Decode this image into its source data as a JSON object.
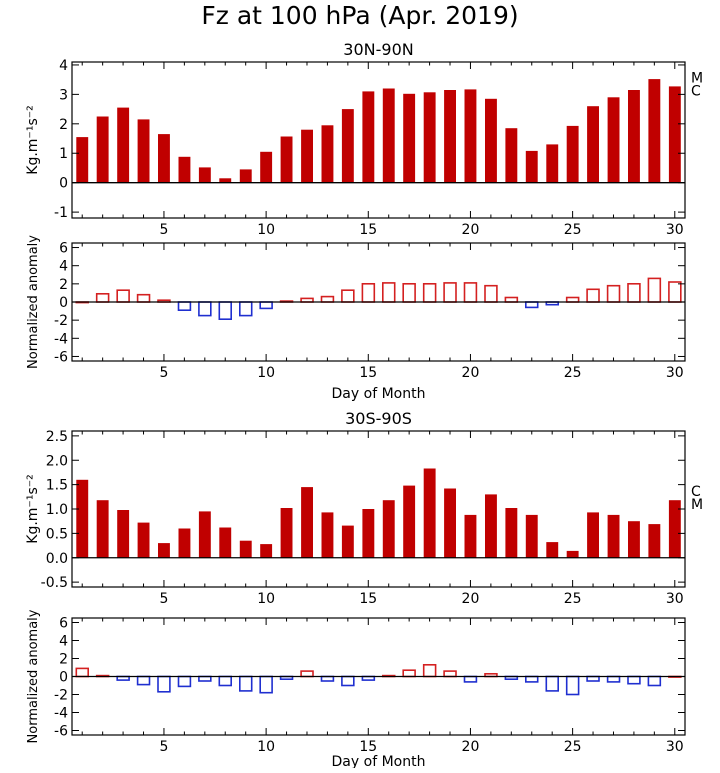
{
  "figure": {
    "title": "Fz at 100 hPa (Apr. 2019)",
    "bar_color": "#c00000",
    "positive_anomaly_color": "#d42020",
    "negative_anomaly_color": "#1f2fd0"
  },
  "chart_data": [
    {
      "type": "bar",
      "title": "30N-90N",
      "ylabel": "Kg.m⁻¹s⁻²",
      "xlabel": "",
      "x": [
        1,
        2,
        3,
        4,
        5,
        6,
        7,
        8,
        9,
        10,
        11,
        12,
        13,
        14,
        15,
        16,
        17,
        18,
        19,
        20,
        21,
        22,
        23,
        24,
        25,
        26,
        27,
        28,
        29,
        30
      ],
      "values": [
        1.55,
        2.25,
        2.55,
        2.15,
        1.65,
        0.88,
        0.52,
        0.15,
        0.45,
        1.05,
        1.57,
        1.8,
        1.95,
        2.5,
        3.1,
        3.2,
        3.02,
        3.07,
        3.15,
        3.17,
        2.85,
        1.85,
        1.08,
        1.3,
        1.93,
        2.6,
        2.9,
        3.15,
        3.52,
        3.27
      ],
      "ylim": [
        -1.2,
        4.1
      ],
      "yticks": [
        "-1",
        "0",
        "1",
        "2",
        "3",
        "4"
      ],
      "xticks": [
        "5",
        "10",
        "15",
        "20",
        "25",
        "30"
      ],
      "right_markers": [
        "M",
        "C"
      ],
      "fill": "solid"
    },
    {
      "type": "bar",
      "title": "",
      "ylabel": "Normalized anomaly",
      "xlabel": "Day of Month",
      "x": [
        1,
        2,
        3,
        4,
        5,
        6,
        7,
        8,
        9,
        10,
        11,
        12,
        13,
        14,
        15,
        16,
        17,
        18,
        19,
        20,
        21,
        22,
        23,
        24,
        25,
        26,
        27,
        28,
        29,
        30
      ],
      "values": [
        0.0,
        0.9,
        1.3,
        0.8,
        0.2,
        -0.9,
        -1.5,
        -1.9,
        -1.5,
        -0.7,
        0.1,
        0.4,
        0.6,
        1.3,
        2.0,
        2.1,
        2.0,
        2.0,
        2.1,
        2.1,
        1.8,
        0.5,
        -0.6,
        -0.3,
        0.5,
        1.4,
        1.8,
        2.0,
        2.6,
        2.2
      ],
      "ylim": [
        -6.5,
        6.5
      ],
      "yticks": [
        "-6",
        "-4",
        "-2",
        "0",
        "2",
        "4",
        "6"
      ],
      "xticks": [
        "5",
        "10",
        "15",
        "20",
        "25",
        "30"
      ],
      "fill": "outline"
    },
    {
      "type": "bar",
      "title": "30S-90S",
      "ylabel": "Kg.m⁻¹s⁻²",
      "xlabel": "",
      "x": [
        1,
        2,
        3,
        4,
        5,
        6,
        7,
        8,
        9,
        10,
        11,
        12,
        13,
        14,
        15,
        16,
        17,
        18,
        19,
        20,
        21,
        22,
        23,
        24,
        25,
        26,
        27,
        28,
        29,
        30
      ],
      "values": [
        1.6,
        1.18,
        0.98,
        0.72,
        0.3,
        0.6,
        0.95,
        0.62,
        0.35,
        0.28,
        1.02,
        1.45,
        0.93,
        0.66,
        1.0,
        1.18,
        1.48,
        1.83,
        1.42,
        0.88,
        1.3,
        1.02,
        0.88,
        0.32,
        0.14,
        0.93,
        0.88,
        0.75,
        0.69,
        1.18
      ],
      "ylim": [
        -0.6,
        2.6
      ],
      "yticks": [
        "-0.5",
        "0.0",
        "0.5",
        "1.0",
        "1.5",
        "2.0",
        "2.5"
      ],
      "xticks": [
        "5",
        "10",
        "15",
        "20",
        "25",
        "30"
      ],
      "right_markers": [
        "C",
        "M"
      ],
      "fill": "solid"
    },
    {
      "type": "bar",
      "title": "",
      "ylabel": "Normalized anomaly",
      "xlabel": "Day of Month",
      "x": [
        1,
        2,
        3,
        4,
        5,
        6,
        7,
        8,
        9,
        10,
        11,
        12,
        13,
        14,
        15,
        16,
        17,
        18,
        19,
        20,
        21,
        22,
        23,
        24,
        25,
        26,
        27,
        28,
        29,
        30
      ],
      "values": [
        0.9,
        0.1,
        -0.4,
        -0.9,
        -1.7,
        -1.1,
        -0.5,
        -1.0,
        -1.6,
        -1.8,
        -0.3,
        0.6,
        -0.5,
        -1.0,
        -0.4,
        0.1,
        0.7,
        1.3,
        0.6,
        -0.6,
        0.3,
        -0.3,
        -0.6,
        -1.6,
        -2.0,
        -0.5,
        -0.6,
        -0.8,
        -1.0,
        0.0
      ],
      "ylim": [
        -6.5,
        6.5
      ],
      "yticks": [
        "-6",
        "-4",
        "-2",
        "0",
        "2",
        "4",
        "6"
      ],
      "xticks": [
        "5",
        "10",
        "15",
        "20",
        "25",
        "30"
      ],
      "fill": "outline"
    }
  ]
}
